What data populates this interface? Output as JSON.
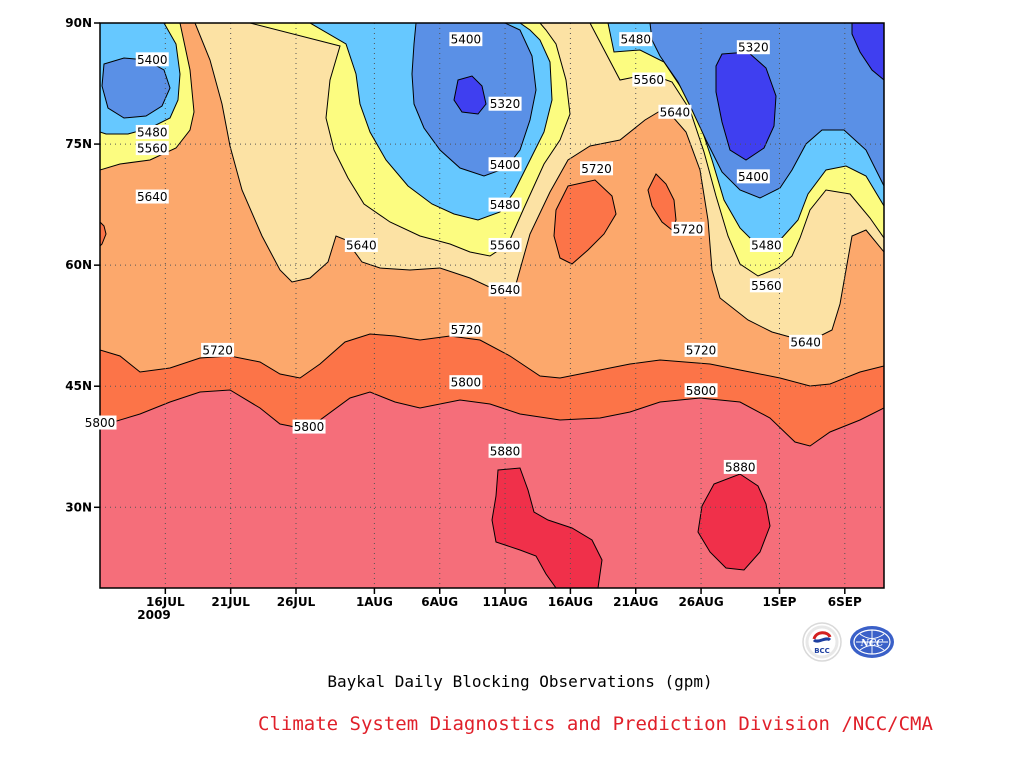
{
  "title": "Baykal Daily Blocking Observations (gpm)",
  "credit": "Climate System Diagnostics and Prediction Division /NCC/CMA",
  "logos": {
    "left_logo_text": "BCC",
    "right_logo_text": "NCC"
  },
  "colors": {
    "c_lt_5320": "#3f3ff0",
    "c_5320_5400": "#5a90e6",
    "c_5400_5480": "#66c8ff",
    "c_5480_5560": "#fcfc80",
    "c_5560_5640": "#fce2a4",
    "c_5640_5720": "#fca86c",
    "c_5720_5800": "#fc7448",
    "c_5800_5880": "#f56e7a",
    "c_gt_5880": "#f0304a",
    "credit": "#e0202a"
  },
  "chart_data": {
    "type": "heatmap",
    "subtype": "time-latitude contour",
    "title": "Baykal Daily Blocking Observations (gpm)",
    "x_axis": {
      "start_date": "2009-07-11",
      "end_date": "2009-09-09",
      "ticks": [
        "16JUL",
        "21JUL",
        "26JUL",
        "1AUG",
        "6AUG",
        "11AUG",
        "16AUG",
        "21AUG",
        "26AUG",
        "1SEP",
        "6SEP"
      ],
      "tick_dates": [
        "2009-07-16",
        "2009-07-21",
        "2009-07-26",
        "2009-08-01",
        "2009-08-06",
        "2009-08-11",
        "2009-08-16",
        "2009-08-21",
        "2009-08-26",
        "2009-09-01",
        "2009-09-06"
      ],
      "year_label": "2009"
    },
    "y_axis": {
      "range": [
        20,
        90
      ],
      "ticks": [
        "30N",
        "45N",
        "60N",
        "75N",
        "90N"
      ],
      "tick_values": [
        30,
        45,
        60,
        75,
        90
      ]
    },
    "grid": true,
    "contour_levels": [
      5320,
      5400,
      5480,
      5560,
      5640,
      5720,
      5800,
      5880
    ],
    "contour_labels": [
      {
        "text": "5400",
        "date": "2009-07-15",
        "lat": 85.5
      },
      {
        "text": "5480",
        "date": "2009-07-15",
        "lat": 76.5
      },
      {
        "text": "5560",
        "date": "2009-07-15",
        "lat": 74.5
      },
      {
        "text": "5640",
        "date": "2009-07-15",
        "lat": 68.5
      },
      {
        "text": "5720",
        "date": "2009-07-20",
        "lat": 49.5
      },
      {
        "text": "5800",
        "date": "2009-07-11",
        "lat": 40.5
      },
      {
        "text": "5800",
        "date": "2009-07-27",
        "lat": 40.0
      },
      {
        "text": "5640",
        "date": "2009-07-31",
        "lat": 62.5
      },
      {
        "text": "5400",
        "date": "2009-08-08",
        "lat": 88.0
      },
      {
        "text": "5320",
        "date": "2009-08-11",
        "lat": 80.0
      },
      {
        "text": "5400",
        "date": "2009-08-11",
        "lat": 72.5
      },
      {
        "text": "5480",
        "date": "2009-08-11",
        "lat": 67.5
      },
      {
        "text": "5560",
        "date": "2009-08-11",
        "lat": 62.5
      },
      {
        "text": "5640",
        "date": "2009-08-11",
        "lat": 57.0
      },
      {
        "text": "5720",
        "date": "2009-08-08",
        "lat": 52.0
      },
      {
        "text": "5800",
        "date": "2009-08-08",
        "lat": 45.5
      },
      {
        "text": "5880",
        "date": "2009-08-11",
        "lat": 37.0
      },
      {
        "text": "5720",
        "date": "2009-08-18",
        "lat": 72.0
      },
      {
        "text": "5480",
        "date": "2009-08-21",
        "lat": 88.0
      },
      {
        "text": "5560",
        "date": "2009-08-22",
        "lat": 83.0
      },
      {
        "text": "5640",
        "date": "2009-08-24",
        "lat": 79.0
      },
      {
        "text": "5720",
        "date": "2009-08-25",
        "lat": 64.5
      },
      {
        "text": "5720",
        "date": "2009-08-26",
        "lat": 49.5
      },
      {
        "text": "5800",
        "date": "2009-08-26",
        "lat": 44.5
      },
      {
        "text": "5880",
        "date": "2009-08-29",
        "lat": 35.0
      },
      {
        "text": "5320",
        "date": "2009-08-30",
        "lat": 87.0
      },
      {
        "text": "5400",
        "date": "2009-08-30",
        "lat": 71.0
      },
      {
        "text": "5480",
        "date": "2009-08-31",
        "lat": 62.5
      },
      {
        "text": "5560",
        "date": "2009-08-31",
        "lat": 57.5
      },
      {
        "text": "5640",
        "date": "2009-09-03",
        "lat": 50.5
      }
    ]
  }
}
